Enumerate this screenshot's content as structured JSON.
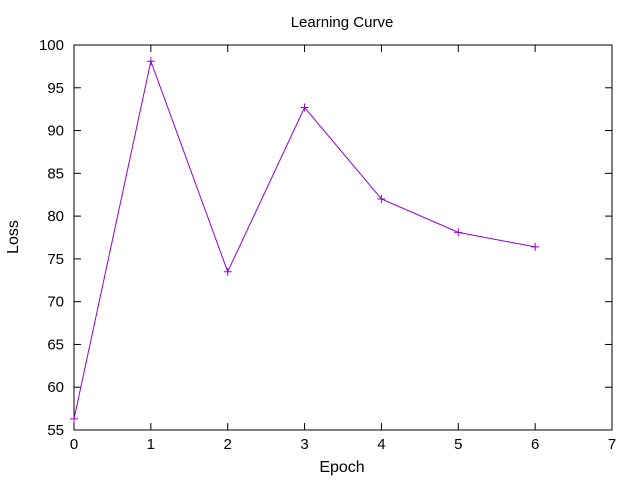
{
  "chart_data": {
    "type": "line",
    "title": "Learning Curve",
    "xlabel": "Epoch",
    "ylabel": "Loss",
    "xlim": [
      0,
      7
    ],
    "ylim": [
      55,
      100
    ],
    "xticks": [
      0,
      1,
      2,
      3,
      4,
      5,
      6,
      7
    ],
    "yticks": [
      55,
      60,
      65,
      70,
      75,
      80,
      85,
      90,
      95,
      100
    ],
    "grid": false,
    "series": [
      {
        "color": "#9400d3",
        "marker": "plus",
        "x": [
          0,
          1,
          2,
          3,
          4,
          5,
          6
        ],
        "values": [
          56.3,
          98.1,
          73.5,
          92.7,
          82.0,
          78.1,
          76.4
        ]
      }
    ]
  }
}
